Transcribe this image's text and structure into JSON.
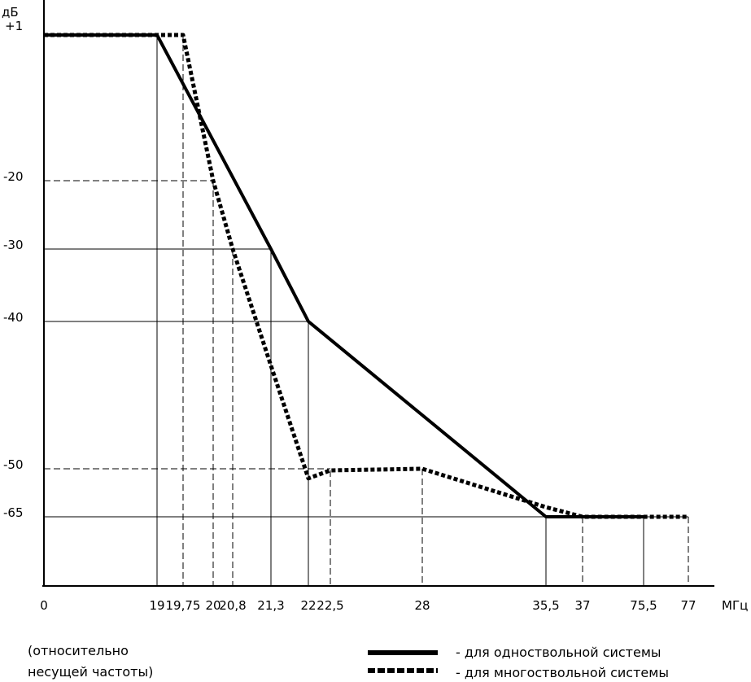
{
  "chart_data": {
    "type": "line",
    "ylabel": "дБ",
    "xlabel": "МГц",
    "note": [
      "(относительно",
      "несущей частоты)"
    ],
    "x_ticks": [
      "0",
      "19",
      "19,75",
      "20",
      "20,8",
      "21,3",
      "22",
      "22,5",
      "28",
      "35,5",
      "37",
      "75,5",
      "77"
    ],
    "x_tick_values": [
      0,
      19,
      19.75,
      20,
      20.8,
      21.3,
      22,
      22.5,
      28,
      35.5,
      37,
      75.5,
      77
    ],
    "y_ticks": [
      "+1",
      "-20",
      "-30",
      "-40",
      "-50",
      "-65"
    ],
    "y_tick_values": [
      1,
      -20,
      -30,
      -40,
      -50,
      -65
    ],
    "series": [
      {
        "name": "- для одноствольной системы",
        "style": "solid",
        "points": [
          [
            0,
            1
          ],
          [
            19,
            1
          ],
          [
            21.3,
            -30
          ],
          [
            22,
            -40
          ],
          [
            35.5,
            -65
          ],
          [
            75.5,
            -65
          ]
        ]
      },
      {
        "name": "- для многоствольной системы",
        "style": "dotted",
        "points": [
          [
            0,
            1
          ],
          [
            19.75,
            1
          ],
          [
            20,
            -20
          ],
          [
            20.8,
            -30
          ],
          [
            21.3,
            -43
          ],
          [
            22,
            -53
          ],
          [
            22.5,
            -50.5
          ],
          [
            28,
            -50
          ],
          [
            35.5,
            -62
          ],
          [
            37,
            -65
          ],
          [
            77,
            -65
          ]
        ]
      }
    ],
    "guides": {
      "solid_vertical": [
        19,
        21.3,
        22,
        35.5,
        75.5
      ],
      "dashed_vertical": [
        19.75,
        20,
        20.8,
        22.5,
        28,
        37,
        77
      ]
    },
    "color": "#000000"
  }
}
